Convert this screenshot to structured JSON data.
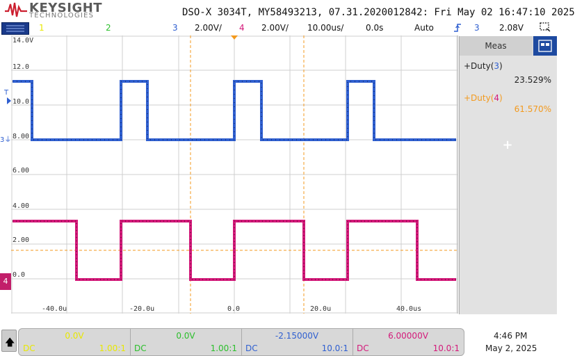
{
  "header": {
    "brand": "KEYSIGHT",
    "brand_sub": "TECHNOLOGIES",
    "scope_id": "DSO-X 3034T, MY58493213, 07.31.2020012842: Fri May 02 16:47:10 2025"
  },
  "status_bar": {
    "ch1": "1",
    "ch2": "2",
    "ch3": "3",
    "ch3_scale": "2.00V/",
    "ch4": "4",
    "ch4_scale": "2.00V/",
    "timebase": "10.00us/",
    "delay": "0.0s",
    "trigger_mode": "Auto",
    "trigger_icon": "rising-edge-icon",
    "trigger_source": "3",
    "trigger_level": "2.08V"
  },
  "grid": {
    "y_labels": [
      "14.0V",
      "12.0",
      "10.0",
      "8.00",
      "6.00",
      "4.00",
      "2.00",
      "0.0"
    ],
    "x_labels": [
      "-40.0u",
      "-20.0u",
      "0.0",
      "20.0u",
      "40.0us"
    ],
    "markers": {
      "trigger": "T",
      "ch3_ground": "3",
      "ch4_ground": "4"
    }
  },
  "meas": {
    "tab_label": "Meas",
    "items": [
      {
        "prefix": "+Duty(",
        "channel": "3",
        "suffix": ")",
        "value": "23.529%",
        "color": "#2f5fd0"
      },
      {
        "prefix": "+Duty(",
        "channel": "4",
        "suffix": ")",
        "value": "61.570%",
        "color": "#f39a1e"
      }
    ],
    "add_label": "+"
  },
  "footer": {
    "up_icon": "up-arrow-icon",
    "channels": [
      {
        "value": "0.0V",
        "coupling": "DC",
        "probe": "1.00:1",
        "color": "#e8e800"
      },
      {
        "value": "0.0V",
        "coupling": "DC",
        "probe": "1.00:1",
        "color": "#2bbf2b"
      },
      {
        "value": "-2.15000V",
        "coupling": "DC",
        "probe": "10.0:1",
        "color": "#2f5fd0"
      },
      {
        "value": "6.00000V",
        "coupling": "DC",
        "probe": "10.0:1",
        "color": "#d4197a"
      }
    ],
    "time": "4:46 PM",
    "date": "May 2, 2025"
  },
  "colors": {
    "ch1": "#e8e800",
    "ch2": "#2bbf2b",
    "ch3": "#2f5fd0",
    "ch4": "#d4197a",
    "orange": "#f39a1e"
  }
}
